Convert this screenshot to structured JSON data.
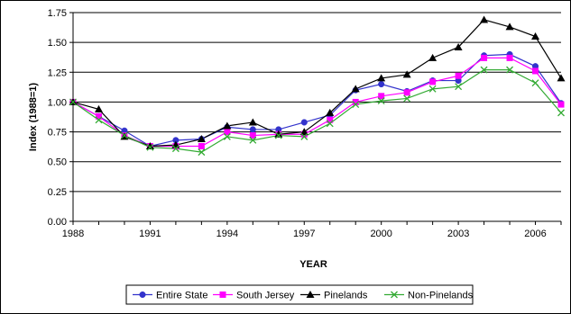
{
  "chart_data": {
    "type": "line",
    "xlabel": "YEAR",
    "ylabel": "Index (1988=1)",
    "xlim": [
      1988,
      2007
    ],
    "ylim": [
      0,
      1.75
    ],
    "x_ticks": [
      1988,
      1991,
      1994,
      1997,
      2000,
      2003,
      2006
    ],
    "y_ticks": [
      0,
      0.25,
      0.5,
      0.75,
      1.0,
      1.25,
      1.5,
      1.75
    ],
    "x_tick_labels": [
      "1988",
      "1991",
      "1994",
      "1997",
      "2000",
      "2003",
      "2006"
    ],
    "y_tick_labels": [
      "0.00",
      "0.25",
      "0.50",
      "0.75",
      "1.00",
      "1.25",
      "1.50",
      "1.75"
    ],
    "grid": "horizontal",
    "legend_position": "bottom",
    "x": [
      1988,
      1989,
      1990,
      1991,
      1992,
      1993,
      1994,
      1995,
      1996,
      1997,
      1998,
      1999,
      2000,
      2001,
      2002,
      2003,
      2004,
      2005,
      2006,
      2007
    ],
    "series": [
      {
        "name": "Entire State",
        "color": "#3333cc",
        "marker": "circle",
        "values": [
          1.0,
          0.88,
          0.76,
          0.63,
          0.68,
          0.69,
          0.79,
          0.77,
          0.77,
          0.83,
          0.89,
          1.1,
          1.15,
          1.09,
          1.18,
          1.18,
          1.39,
          1.4,
          1.3,
          0.99
        ]
      },
      {
        "name": "South Jersey",
        "color": "#ff00ff",
        "marker": "square",
        "values": [
          1.0,
          0.88,
          0.72,
          0.63,
          0.63,
          0.63,
          0.75,
          0.72,
          0.73,
          0.73,
          0.85,
          1.0,
          1.05,
          1.08,
          1.17,
          1.22,
          1.37,
          1.37,
          1.26,
          0.98
        ]
      },
      {
        "name": "Pinelands",
        "color": "#000000",
        "marker": "triangle",
        "values": [
          1.0,
          0.94,
          0.71,
          0.63,
          0.64,
          0.69,
          0.8,
          0.83,
          0.73,
          0.75,
          0.91,
          1.11,
          1.2,
          1.23,
          1.37,
          1.46,
          1.69,
          1.63,
          1.55,
          1.2
        ]
      },
      {
        "name": "Non-Pinelands",
        "color": "#33aa33",
        "marker": "x",
        "values": [
          1.0,
          0.85,
          0.72,
          0.62,
          0.61,
          0.58,
          0.71,
          0.68,
          0.72,
          0.71,
          0.82,
          0.98,
          1.01,
          1.03,
          1.11,
          1.13,
          1.27,
          1.27,
          1.16,
          0.91
        ]
      }
    ]
  }
}
